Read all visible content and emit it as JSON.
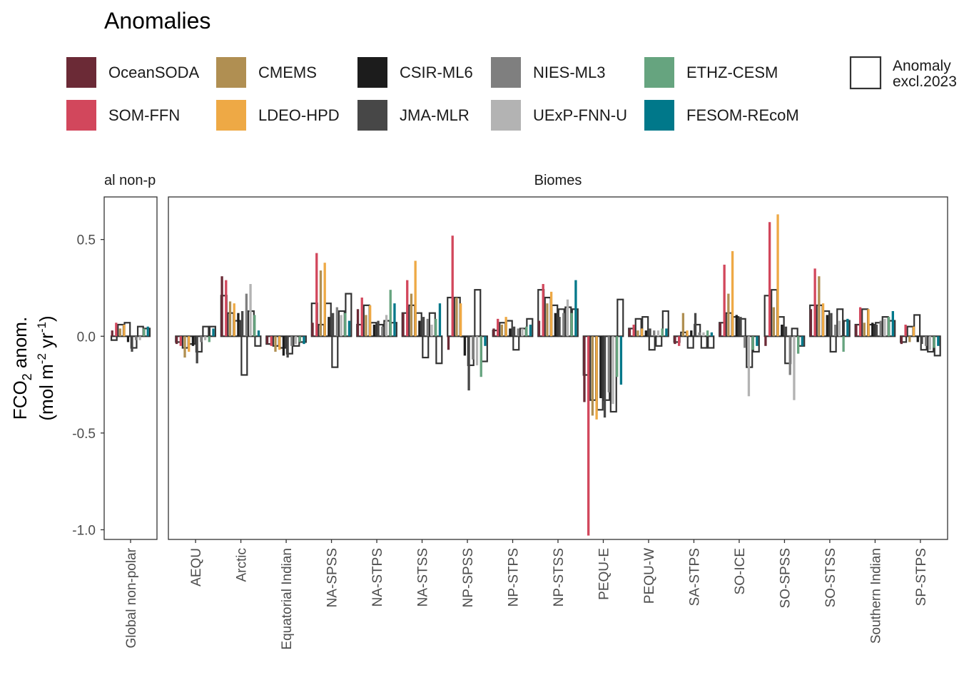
{
  "chart_data": {
    "type": "bar",
    "legend_title": "Anomalies",
    "ylabel_line1": "FCO",
    "ylabel_line1_sub": "2",
    "ylabel_line1_rest": " anom.",
    "ylabel_line2_a": "(mol m",
    "ylabel_line2_sup1": "-2",
    "ylabel_line2_b": " yr",
    "ylabel_line2_sup2": "-1",
    "ylabel_line2_c": ")",
    "ylim": [
      -1.05,
      0.72
    ],
    "yticks": [
      {
        "value": 0.5,
        "label": "0.5"
      },
      {
        "value": 0.0,
        "label": "0.0"
      },
      {
        "value": -0.5,
        "label": "-0.5"
      },
      {
        "value": -1.0,
        "label": "-1.0"
      }
    ],
    "legend_placement": "top",
    "series": [
      {
        "name": "OceanSODA",
        "color": "#6b2a36"
      },
      {
        "name": "SOM-FFN",
        "color": "#d2475c"
      },
      {
        "name": "CMEMS",
        "color": "#b08f52"
      },
      {
        "name": "LDEO-HPD",
        "color": "#eea945"
      },
      {
        "name": "CSIR-ML6",
        "color": "#1c1c1c"
      },
      {
        "name": "JMA-MLR",
        "color": "#474747"
      },
      {
        "name": "NIES-ML3",
        "color": "#7f7f7f"
      },
      {
        "name": "UExP-FNN-U",
        "color": "#b3b3b3"
      },
      {
        "name": "ETHZ-CESM",
        "color": "#66a47f"
      },
      {
        "name": "FESOM-REcoM",
        "color": "#00788a"
      }
    ],
    "outline_series_name_line1": "Anomaly",
    "outline_series_name_line2": "excl.2023",
    "panels": [
      {
        "strip": "al non-p",
        "categories": [
          {
            "name": "Global non-polar",
            "values": [
              0.03,
              0.07,
              0.04,
              0.06,
              -0.03,
              -0.08,
              -0.02,
              -0.02,
              0.04,
              0.05
            ],
            "outline": [
              -0.02,
              0.06,
              0.07,
              -0.06,
              0.05,
              0.04
            ]
          }
        ]
      },
      {
        "strip": "Biomes",
        "categories": [
          {
            "name": "AEQU",
            "values": [
              -0.04,
              -0.05,
              -0.11,
              -0.08,
              -0.05,
              -0.14,
              -0.03,
              -0.02,
              -0.03,
              0.04
            ],
            "outline": [
              -0.03,
              -0.06,
              -0.04,
              -0.08,
              0.05,
              0.05
            ]
          },
          {
            "name": "Arctic",
            "values": [
              0.31,
              0.29,
              0.18,
              0.17,
              0.12,
              0.13,
              0.22,
              0.27,
              0.11,
              0.03
            ],
            "outline": [
              0.21,
              0.12,
              0.08,
              -0.2,
              0.13,
              -0.05
            ]
          },
          {
            "name": "Equatorial Indian",
            "values": [
              -0.04,
              -0.05,
              -0.08,
              -0.07,
              -0.1,
              -0.11,
              -0.05,
              -0.04,
              -0.03,
              -0.04
            ],
            "outline": [
              -0.04,
              -0.05,
              -0.06,
              -0.09,
              -0.05,
              -0.03
            ]
          },
          {
            "name": "NA-SPSS",
            "values": [
              0.07,
              0.43,
              0.34,
              0.38,
              0.1,
              0.12,
              0.15,
              0.11,
              0.12,
              0.08
            ],
            "outline": [
              0.17,
              0.06,
              0.17,
              -0.16,
              0.13,
              0.22
            ]
          },
          {
            "name": "NA-STPS",
            "values": [
              0.14,
              0.2,
              0.11,
              0.16,
              0.06,
              0.08,
              0.05,
              0.11,
              0.24,
              0.17
            ],
            "outline": [
              0.06,
              0.16,
              0.07,
              0.06,
              0.08,
              0.07
            ]
          },
          {
            "name": "NA-STSS",
            "values": [
              0.12,
              0.29,
              0.22,
              0.39,
              0.08,
              0.1,
              0.09,
              0.06,
              0.09,
              0.17
            ],
            "outline": [
              0.12,
              0.16,
              0.12,
              -0.11,
              0.12,
              -0.14
            ]
          },
          {
            "name": "NP-SPSS",
            "values": [
              -0.07,
              0.52,
              0.2,
              0.17,
              -0.1,
              -0.28,
              -0.12,
              -0.15,
              -0.21,
              -0.05
            ],
            "outline": [
              0.2,
              0.2,
              0.0,
              -0.15,
              0.24,
              -0.13
            ]
          },
          {
            "name": "NP-STPS",
            "values": [
              0.04,
              0.09,
              0.06,
              0.1,
              0.04,
              0.05,
              0.04,
              0.04,
              0.05,
              0.06
            ],
            "outline": [
              0.03,
              0.07,
              0.08,
              -0.07,
              0.04,
              0.09
            ]
          },
          {
            "name": "NP-STSS",
            "values": [
              0.08,
              0.27,
              0.17,
              0.23,
              0.12,
              0.1,
              0.12,
              0.19,
              0.12,
              0.29
            ],
            "outline": [
              0.24,
              0.2,
              0.16,
              0.14,
              0.15,
              0.14
            ]
          },
          {
            "name": "PEQU-E",
            "values": [
              -0.34,
              -1.03,
              -0.41,
              -0.43,
              -0.32,
              -0.42,
              -0.29,
              -0.35,
              -0.21,
              -0.25
            ],
            "outline": [
              -0.2,
              -0.33,
              -0.38,
              -0.33,
              -0.39,
              0.19
            ]
          },
          {
            "name": "PEQU-W",
            "values": [
              0.04,
              0.06,
              0.03,
              0.04,
              0.03,
              0.04,
              0.03,
              0.03,
              0.04,
              0.04
            ],
            "outline": [
              0.04,
              0.09,
              0.1,
              -0.07,
              -0.05,
              0.13
            ]
          },
          {
            "name": "SA-STPS",
            "values": [
              -0.04,
              -0.05,
              0.12,
              0.03,
              0.03,
              0.12,
              0.02,
              0.02,
              0.03,
              0.02
            ],
            "outline": [
              -0.03,
              0.02,
              -0.06,
              0.06,
              -0.06,
              -0.06
            ]
          },
          {
            "name": "SO-ICE",
            "values": [
              0.07,
              0.37,
              0.22,
              0.44,
              0.11,
              0.1,
              -0.06,
              -0.31,
              -0.07,
              -0.05
            ],
            "outline": [
              0.07,
              0.12,
              0.1,
              0.09,
              -0.16,
              -0.08
            ]
          },
          {
            "name": "SO-SPSS",
            "values": [
              -0.05,
              0.59,
              0.15,
              0.63,
              0.06,
              0.05,
              -0.2,
              -0.33,
              -0.09,
              -0.05
            ],
            "outline": [
              0.21,
              0.24,
              0.1,
              -0.14,
              0.04,
              -0.05
            ]
          },
          {
            "name": "SO-STSS",
            "values": [
              0.14,
              0.35,
              0.31,
              0.17,
              0.11,
              0.12,
              0.06,
              0.08,
              -0.08,
              0.09
            ],
            "outline": [
              0.16,
              0.16,
              0.13,
              -0.08,
              0.14,
              0.08
            ]
          },
          {
            "name": "Southern Indian",
            "values": [
              0.06,
              0.15,
              0.07,
              0.14,
              0.07,
              0.06,
              0.08,
              0.09,
              0.1,
              0.13
            ],
            "outline": [
              0.06,
              0.14,
              0.06,
              0.07,
              0.1,
              0.08
            ]
          },
          {
            "name": "SP-STPS",
            "values": [
              -0.04,
              0.06,
              -0.03,
              0.05,
              -0.03,
              -0.04,
              -0.05,
              -0.07,
              -0.06,
              -0.05
            ],
            "outline": [
              -0.03,
              0.05,
              0.11,
              -0.07,
              -0.08,
              -0.1
            ]
          }
        ]
      }
    ]
  }
}
